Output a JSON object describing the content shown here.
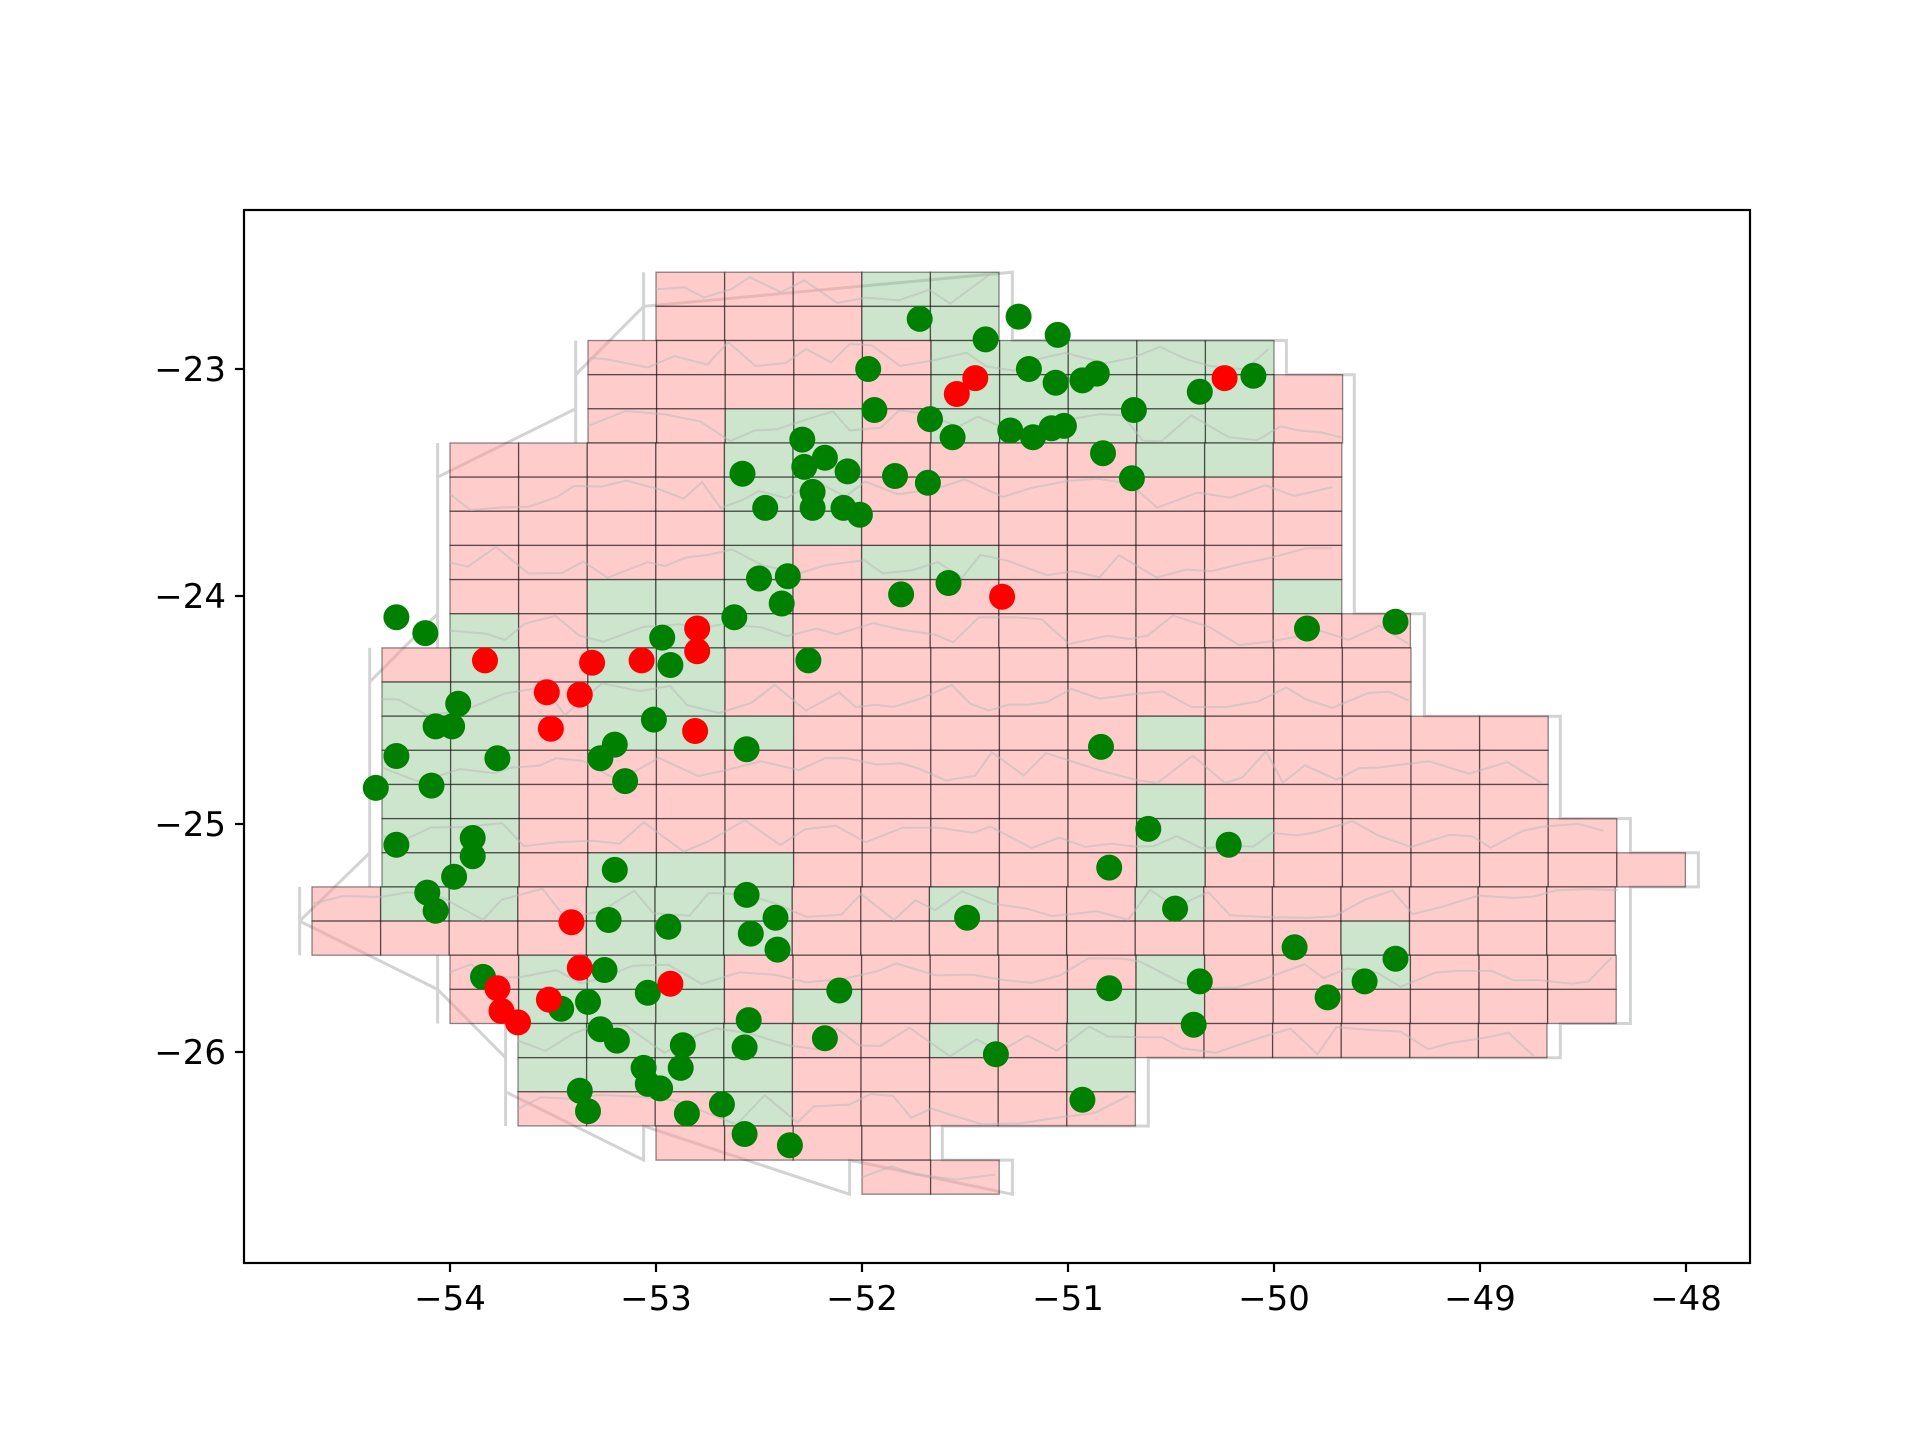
{
  "chart_data": {
    "type": "scatter",
    "title": "",
    "xlabel": "",
    "ylabel": "",
    "xlim": [
      -54.95,
      -47.72
    ],
    "ylim": [
      -26.95,
      -22.32
    ],
    "xticks": [
      -54,
      -53,
      -52,
      -51,
      -50,
      -49,
      -48
    ],
    "yticks": [
      -23,
      -24,
      -25,
      -26
    ],
    "x_tick_labels": [
      "−54",
      "−53",
      "−52",
      "−51",
      "−50",
      "−49",
      "−48"
    ],
    "y_tick_labels": [
      "−23",
      "−24",
      "−25",
      "−26"
    ],
    "grid": false,
    "legend": "none",
    "colors": {
      "cell_fill": "#ff9999",
      "cell_fill_marked": "#88c088",
      "cell_edge": "#000000",
      "border": "#bbbbbb",
      "point_ok": "#008000",
      "point_flag": "#ff0000"
    },
    "grid_cells": {
      "cell_width_deg": 0.333,
      "cell_height_deg": 0.15,
      "rows": [
        {
          "y": -22.65,
          "x0": -53.0,
          "x1": -51.33
        },
        {
          "y": -22.8,
          "x0": -53.0,
          "x1": -51.33
        },
        {
          "y": -22.95,
          "x0": -53.33,
          "x1": -50.0
        },
        {
          "y": -23.1,
          "x0": -53.33,
          "x1": -49.67
        },
        {
          "y": -23.25,
          "x0": -53.33,
          "x1": -49.67
        },
        {
          "y": -23.4,
          "x0": -54.0,
          "x1": -49.67
        },
        {
          "y": -23.55,
          "x0": -54.0,
          "x1": -49.67
        },
        {
          "y": -23.7,
          "x0": -54.0,
          "x1": -49.67
        },
        {
          "y": -23.85,
          "x0": -54.0,
          "x1": -49.67
        },
        {
          "y": -24.0,
          "x0": -54.0,
          "x1": -49.67
        },
        {
          "y": -24.15,
          "x0": -54.0,
          "x1": -49.33
        },
        {
          "y": -24.3,
          "x0": -54.33,
          "x1": -49.33
        },
        {
          "y": -24.45,
          "x0": -54.33,
          "x1": -49.33
        },
        {
          "y": -24.6,
          "x0": -54.33,
          "x1": -48.67
        },
        {
          "y": -24.75,
          "x0": -54.33,
          "x1": -48.67
        },
        {
          "y": -24.9,
          "x0": -54.33,
          "x1": -48.67
        },
        {
          "y": -25.05,
          "x0": -54.33,
          "x1": -48.33
        },
        {
          "y": -25.2,
          "x0": -54.33,
          "x1": -48.0
        },
        {
          "y": -25.35,
          "x0": -54.67,
          "x1": -48.33
        },
        {
          "y": -25.5,
          "x0": -54.67,
          "x1": -48.33
        },
        {
          "y": -25.65,
          "x0": -54.0,
          "x1": -48.33
        },
        {
          "y": -25.8,
          "x0": -54.0,
          "x1": -48.33
        },
        {
          "y": -25.95,
          "x0": -53.67,
          "x1": -48.67
        },
        {
          "y": -26.1,
          "x0": -53.67,
          "x1": -50.67
        },
        {
          "y": -26.25,
          "x0": -53.67,
          "x1": -50.67
        },
        {
          "y": -26.4,
          "x0": -53.0,
          "x1": -51.67
        },
        {
          "y": -26.55,
          "x0": -52.0,
          "x1": -51.33
        }
      ],
      "marked_blocks": [
        [
          -52.0,
          -22.65,
          -51.33,
          -22.95
        ],
        [
          -51.67,
          -22.95,
          -50.67,
          -23.4
        ],
        [
          -50.67,
          -22.95,
          -50.0,
          -23.55
        ],
        [
          -52.67,
          -23.25,
          -52.0,
          -23.85
        ],
        [
          -52.67,
          -23.85,
          -52.33,
          -24.3
        ],
        [
          -52.0,
          -23.85,
          -51.33,
          -24.0
        ],
        [
          -53.33,
          -24.0,
          -52.67,
          -24.75
        ],
        [
          -54.33,
          -24.45,
          -53.67,
          -25.0
        ],
        [
          -54.0,
          -24.15,
          -53.67,
          -24.45
        ],
        [
          -52.67,
          -24.6,
          -52.33,
          -24.75
        ],
        [
          -50.0,
          -24.0,
          -49.33,
          -24.15
        ],
        [
          -50.67,
          -24.6,
          -50.33,
          -24.75
        ],
        [
          -54.33,
          -25.05,
          -53.67,
          -25.5
        ],
        [
          -53.33,
          -25.2,
          -52.67,
          -25.8
        ],
        [
          -52.67,
          -25.2,
          -52.33,
          -25.65
        ],
        [
          -51.67,
          -25.35,
          -51.33,
          -25.5
        ],
        [
          -50.67,
          -24.9,
          -50.33,
          -25.35
        ],
        [
          -50.33,
          -25.05,
          -50.0,
          -25.2
        ],
        [
          -50.67,
          -25.35,
          -50.33,
          -25.5
        ],
        [
          -49.67,
          -25.5,
          -49.33,
          -25.8
        ],
        [
          -53.67,
          -25.65,
          -52.67,
          -26.25
        ],
        [
          -52.67,
          -25.95,
          -52.33,
          -26.4
        ],
        [
          -52.33,
          -25.8,
          -52.0,
          -25.95
        ],
        [
          -51.67,
          -25.95,
          -51.33,
          -26.1
        ],
        [
          -51.0,
          -25.8,
          -50.67,
          -26.25
        ],
        [
          -50.67,
          -25.65,
          -50.33,
          -25.95
        ]
      ]
    },
    "series": [
      {
        "color": "green",
        "points": [
          [
            -51.72,
            -22.78
          ],
          [
            -51.24,
            -22.77
          ],
          [
            -51.05,
            -22.85
          ],
          [
            -51.4,
            -22.87
          ],
          [
            -51.97,
            -23.0
          ],
          [
            -51.19,
            -23.0
          ],
          [
            -50.86,
            -23.02
          ],
          [
            -50.93,
            -23.05
          ],
          [
            -51.06,
            -23.06
          ],
          [
            -50.1,
            -23.03
          ],
          [
            -50.36,
            -23.1
          ],
          [
            -51.94,
            -23.18
          ],
          [
            -50.68,
            -23.18
          ],
          [
            -51.67,
            -23.22
          ],
          [
            -51.56,
            -23.3
          ],
          [
            -51.28,
            -23.27
          ],
          [
            -51.17,
            -23.3
          ],
          [
            -51.08,
            -23.26
          ],
          [
            -51.02,
            -23.25
          ],
          [
            -52.29,
            -23.31
          ],
          [
            -52.18,
            -23.39
          ],
          [
            -52.28,
            -23.43
          ],
          [
            -52.58,
            -23.46
          ],
          [
            -52.07,
            -23.45
          ],
          [
            -51.84,
            -23.47
          ],
          [
            -51.68,
            -23.5
          ],
          [
            -50.83,
            -23.37
          ],
          [
            -50.69,
            -23.48
          ],
          [
            -52.24,
            -23.54
          ],
          [
            -52.47,
            -23.61
          ],
          [
            -52.24,
            -23.61
          ],
          [
            -52.09,
            -23.61
          ],
          [
            -52.01,
            -23.64
          ],
          [
            -52.5,
            -23.92
          ],
          [
            -52.36,
            -23.91
          ],
          [
            -51.58,
            -23.94
          ],
          [
            -51.81,
            -23.99
          ],
          [
            -52.39,
            -24.03
          ],
          [
            -52.62,
            -24.09
          ],
          [
            -54.26,
            -24.09
          ],
          [
            -54.12,
            -24.16
          ],
          [
            -52.97,
            -24.18
          ],
          [
            -52.26,
            -24.28
          ],
          [
            -52.93,
            -24.3
          ],
          [
            -53.96,
            -24.47
          ],
          [
            -53.99,
            -24.57
          ],
          [
            -54.07,
            -24.57
          ],
          [
            -53.01,
            -24.54
          ],
          [
            -53.2,
            -24.65
          ],
          [
            -52.56,
            -24.67
          ],
          [
            -54.26,
            -24.7
          ],
          [
            -53.77,
            -24.71
          ],
          [
            -53.27,
            -24.71
          ],
          [
            -53.15,
            -24.81
          ],
          [
            -54.09,
            -24.83
          ],
          [
            -54.36,
            -24.84
          ],
          [
            -50.84,
            -24.66
          ],
          [
            -50.61,
            -25.02
          ],
          [
            -49.84,
            -24.14
          ],
          [
            -49.41,
            -24.11
          ],
          [
            -53.89,
            -25.06
          ],
          [
            -53.89,
            -25.14
          ],
          [
            -54.26,
            -25.09
          ],
          [
            -53.98,
            -25.23
          ],
          [
            -54.11,
            -25.3
          ],
          [
            -54.07,
            -25.38
          ],
          [
            -53.2,
            -25.2
          ],
          [
            -52.56,
            -25.31
          ],
          [
            -53.23,
            -25.42
          ],
          [
            -52.94,
            -25.45
          ],
          [
            -52.42,
            -25.41
          ],
          [
            -52.54,
            -25.48
          ],
          [
            -52.41,
            -25.55
          ],
          [
            -51.49,
            -25.41
          ],
          [
            -50.8,
            -25.19
          ],
          [
            -50.48,
            -25.37
          ],
          [
            -50.22,
            -25.09
          ],
          [
            -49.9,
            -25.54
          ],
          [
            -49.41,
            -25.59
          ],
          [
            -49.56,
            -25.69
          ],
          [
            -49.74,
            -25.76
          ],
          [
            -50.36,
            -25.69
          ],
          [
            -50.39,
            -25.88
          ],
          [
            -50.8,
            -25.72
          ],
          [
            -53.84,
            -25.67
          ],
          [
            -53.46,
            -25.81
          ],
          [
            -53.25,
            -25.64
          ],
          [
            -53.33,
            -25.78
          ],
          [
            -53.04,
            -25.74
          ],
          [
            -52.11,
            -25.73
          ],
          [
            -53.27,
            -25.9
          ],
          [
            -53.19,
            -25.95
          ],
          [
            -52.55,
            -25.86
          ],
          [
            -52.57,
            -25.98
          ],
          [
            -52.87,
            -25.97
          ],
          [
            -52.88,
            -26.07
          ],
          [
            -52.18,
            -25.94
          ],
          [
            -51.35,
            -26.01
          ],
          [
            -53.06,
            -26.07
          ],
          [
            -53.04,
            -26.14
          ],
          [
            -52.98,
            -26.16
          ],
          [
            -53.37,
            -26.17
          ],
          [
            -53.33,
            -26.26
          ],
          [
            -52.85,
            -26.27
          ],
          [
            -52.68,
            -26.23
          ],
          [
            -52.57,
            -26.36
          ],
          [
            -52.35,
            -26.41
          ],
          [
            -50.93,
            -26.21
          ]
        ]
      },
      {
        "color": "red",
        "points": [
          [
            -51.54,
            -23.11
          ],
          [
            -51.45,
            -23.04
          ],
          [
            -50.24,
            -23.04
          ],
          [
            -51.32,
            -24.0
          ],
          [
            -52.8,
            -24.14
          ],
          [
            -52.8,
            -24.24
          ],
          [
            -53.07,
            -24.28
          ],
          [
            -53.83,
            -24.28
          ],
          [
            -53.31,
            -24.29
          ],
          [
            -53.53,
            -24.42
          ],
          [
            -53.37,
            -24.43
          ],
          [
            -53.51,
            -24.58
          ],
          [
            -52.81,
            -24.59
          ],
          [
            -53.41,
            -25.43
          ],
          [
            -53.37,
            -25.63
          ],
          [
            -52.93,
            -25.7
          ],
          [
            -53.77,
            -25.72
          ],
          [
            -53.52,
            -25.77
          ],
          [
            -53.75,
            -25.82
          ],
          [
            -53.67,
            -25.87
          ]
        ]
      }
    ]
  }
}
